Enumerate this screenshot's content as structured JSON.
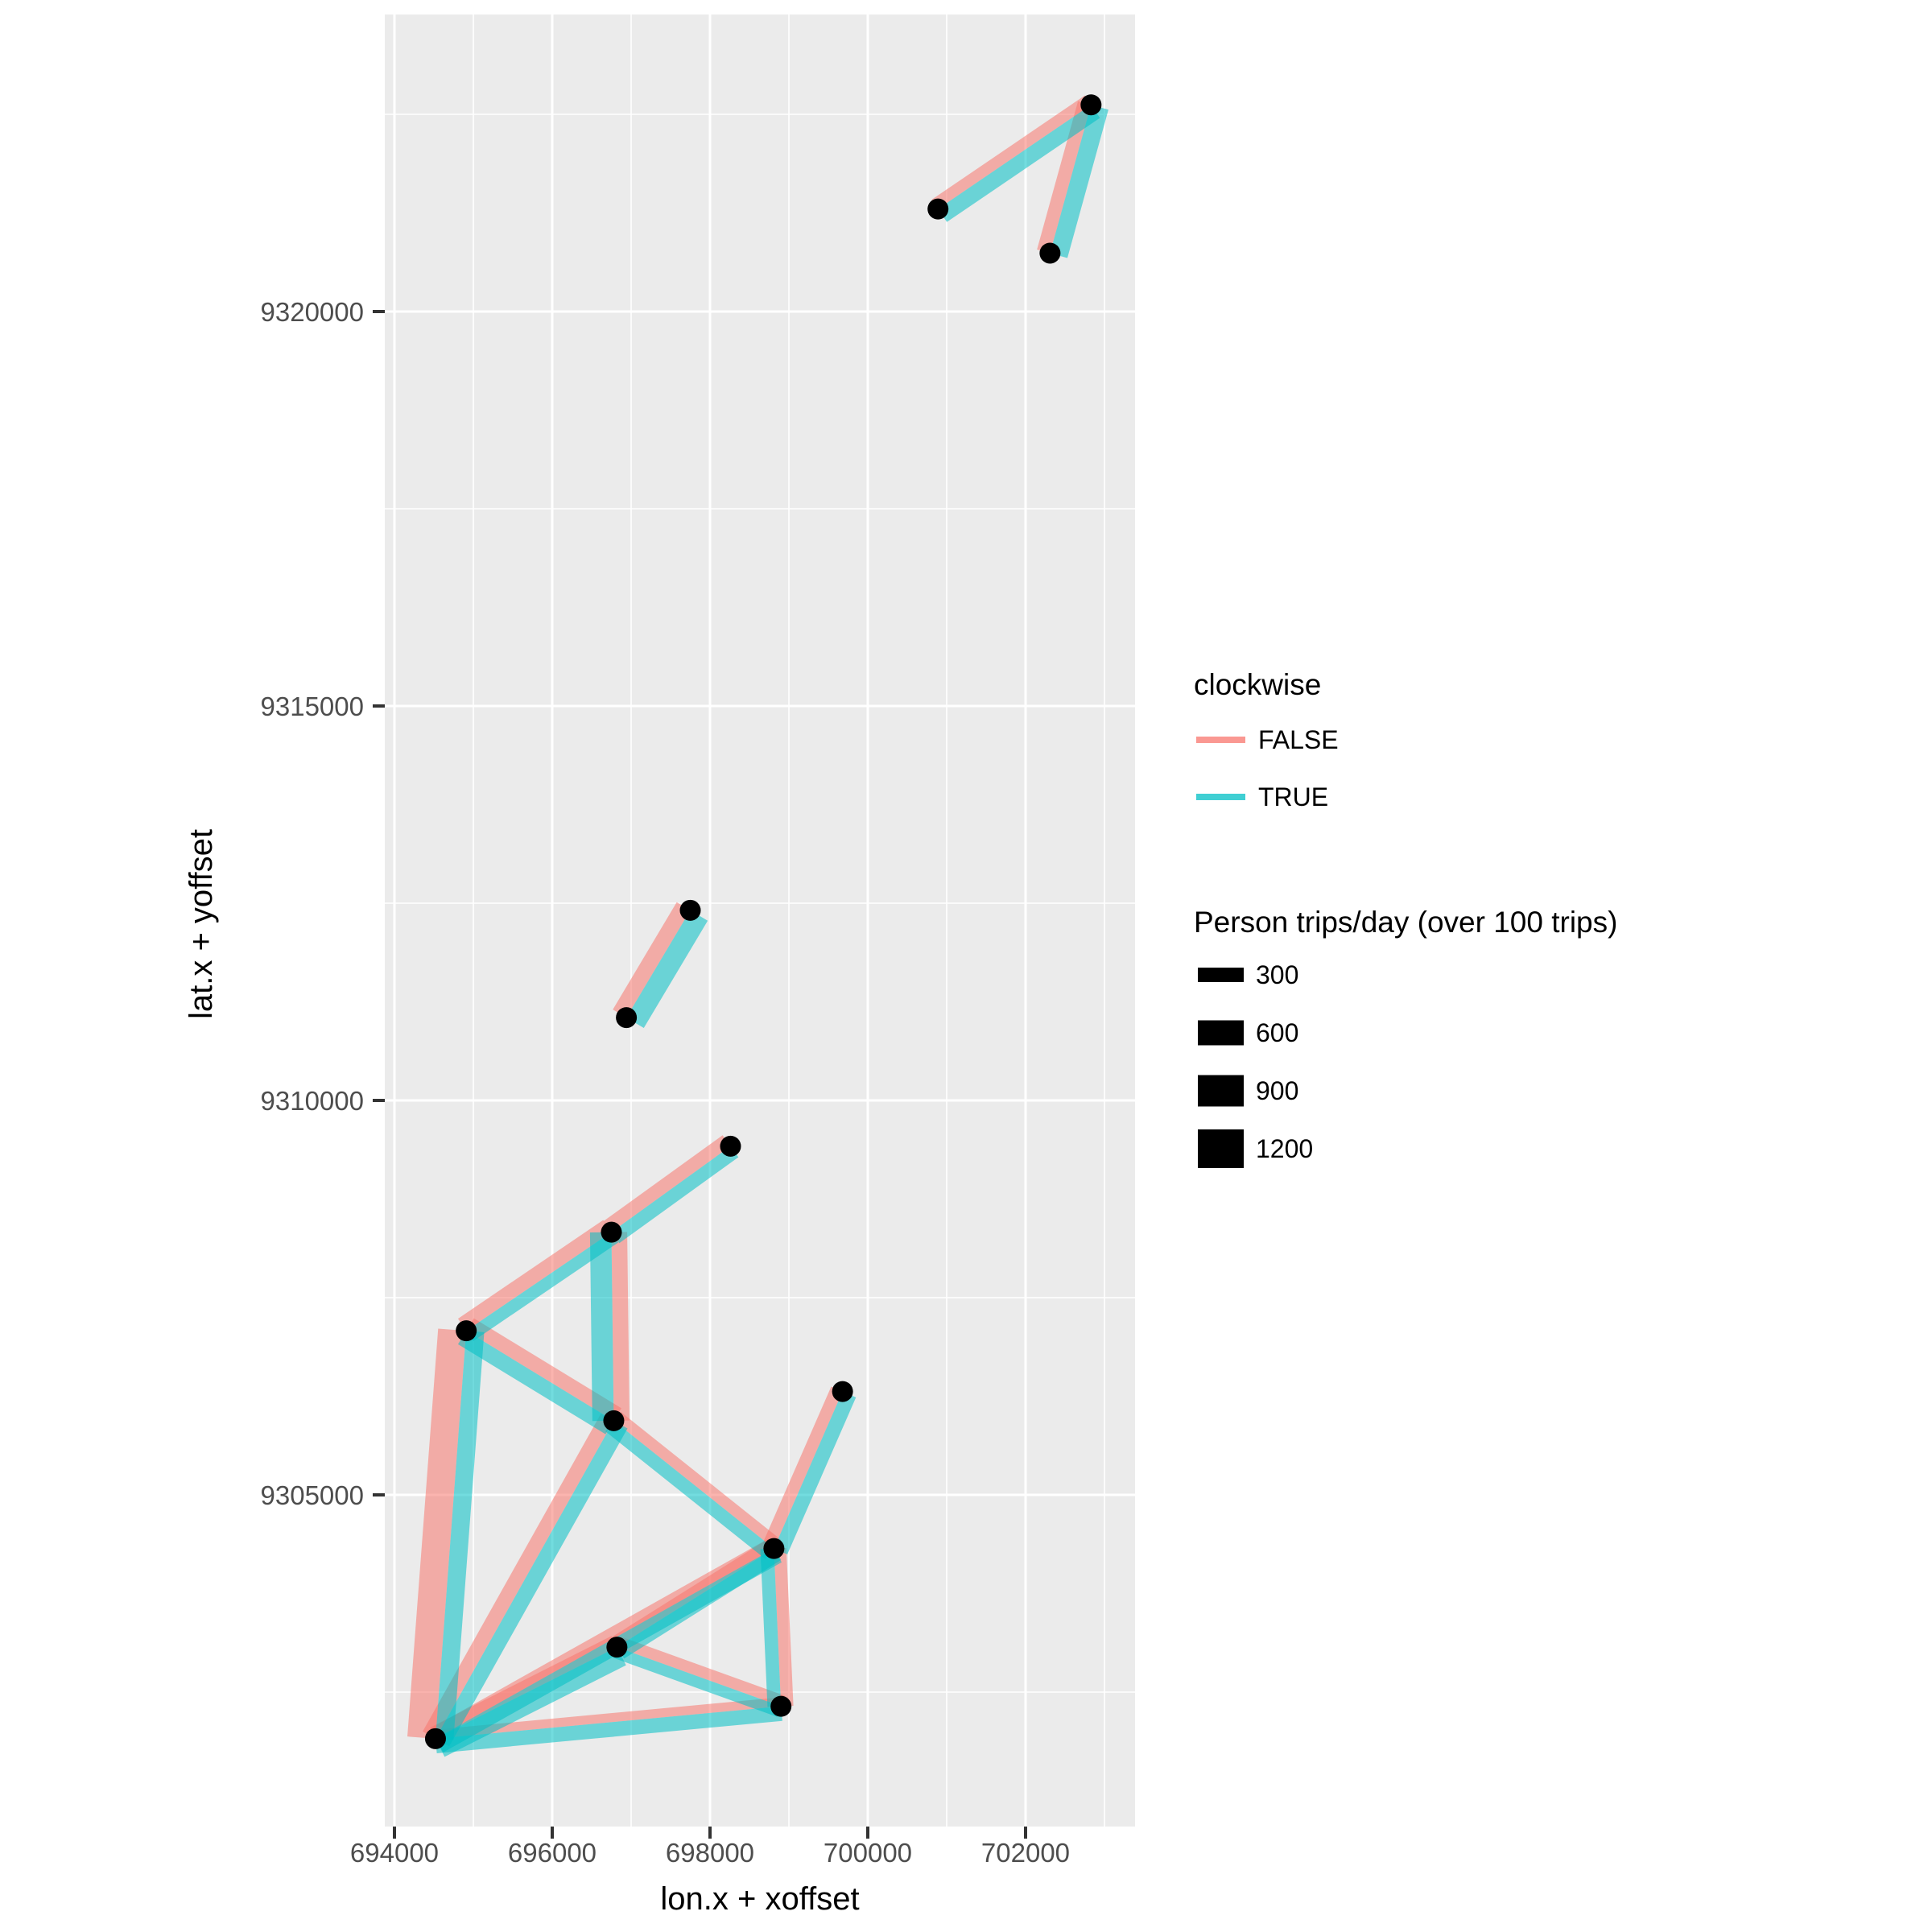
{
  "chart_data": {
    "type": "scatter",
    "subtype": "flow-map-offset-segments",
    "title": "",
    "xlabel": "lon.x + xoffset",
    "ylabel": "lat.x + yoffset",
    "x_ticks": [
      694000,
      696000,
      698000,
      700000,
      702000
    ],
    "y_ticks": [
      9320000,
      9315000,
      9310000,
      9305000
    ],
    "xlim": [
      693878,
      703388
    ],
    "ylim": [
      9300796,
      9323765
    ],
    "grid": "on",
    "panel_bg": "#EBEBEB",
    "gridline_color": "#FFFFFF",
    "tick_color": "#333333",
    "tick_label_color": "#4d4d4d",
    "colors": {
      "clockwise_false": "#F8766D",
      "clockwise_true": "#00BFC4",
      "node": "#000000"
    },
    "band_opacity": 0.55,
    "nodes": [
      {
        "id": "A",
        "lon": 702830,
        "lat": 9322620
      },
      {
        "id": "B",
        "lon": 700890,
        "lat": 9321300
      },
      {
        "id": "C",
        "lon": 702310,
        "lat": 9320740
      },
      {
        "id": "D",
        "lon": 697750,
        "lat": 9312410
      },
      {
        "id": "E",
        "lon": 696940,
        "lat": 9311050
      },
      {
        "id": "F",
        "lon": 698260,
        "lat": 9309420
      },
      {
        "id": "G",
        "lon": 696750,
        "lat": 9308330
      },
      {
        "id": "H",
        "lon": 694910,
        "lat": 9307080
      },
      {
        "id": "I",
        "lon": 696780,
        "lat": 9305940
      },
      {
        "id": "J",
        "lon": 699680,
        "lat": 9306310
      },
      {
        "id": "K",
        "lon": 698810,
        "lat": 9304320
      },
      {
        "id": "L",
        "lon": 696820,
        "lat": 9303070
      },
      {
        "id": "M",
        "lon": 698900,
        "lat": 9302320
      },
      {
        "id": "N",
        "lon": 694520,
        "lat": 9301910
      }
    ],
    "edges": [
      {
        "from": "B",
        "to": "A",
        "trips_false": 500,
        "trips_true": 700
      },
      {
        "from": "C",
        "to": "A",
        "trips_false": 600,
        "trips_true": 800
      },
      {
        "from": "E",
        "to": "D",
        "trips_false": 700,
        "trips_true": 900
      },
      {
        "from": "H",
        "to": "G",
        "trips_false": 650,
        "trips_true": 550
      },
      {
        "from": "G",
        "to": "F",
        "trips_false": 600,
        "trips_true": 600
      },
      {
        "from": "G",
        "to": "I",
        "trips_false": 700,
        "trips_true": 950
      },
      {
        "from": "H",
        "to": "I",
        "trips_false": 650,
        "trips_true": 700
      },
      {
        "from": "N",
        "to": "H",
        "trips_false": 1250,
        "trips_true": 800
      },
      {
        "from": "N",
        "to": "I",
        "trips_false": 650,
        "trips_true": 700
      },
      {
        "from": "N",
        "to": "L",
        "trips_false": 550,
        "trips_true": 900
      },
      {
        "from": "N",
        "to": "K",
        "trips_false": 500,
        "trips_true": 700
      },
      {
        "from": "N",
        "to": "M",
        "trips_false": 400,
        "trips_true": 650
      },
      {
        "from": "L",
        "to": "K",
        "trips_false": 500,
        "trips_true": 600
      },
      {
        "from": "L",
        "to": "M",
        "trips_false": 500,
        "trips_true": 500
      },
      {
        "from": "K",
        "to": "M",
        "trips_false": 550,
        "trips_true": 600
      },
      {
        "from": "K",
        "to": "J",
        "trips_false": 550,
        "trips_true": 650
      },
      {
        "from": "I",
        "to": "K",
        "trips_false": 500,
        "trips_true": 600
      }
    ],
    "legend_clockwise": {
      "title": "clockwise",
      "entries": [
        {
          "label": "FALSE",
          "color": "#F8766D"
        },
        {
          "label": "TRUE",
          "color": "#00BFC4"
        }
      ]
    },
    "legend_size": {
      "title": "Person trips/day (over 100 trips)",
      "entries": [
        {
          "label": "300",
          "value": 300,
          "key_height": 18
        },
        {
          "label": "600",
          "value": 600,
          "key_height": 31
        },
        {
          "label": "900",
          "value": 900,
          "key_height": 39
        },
        {
          "label": "1200",
          "value": 1200,
          "key_height": 48
        }
      ]
    }
  }
}
